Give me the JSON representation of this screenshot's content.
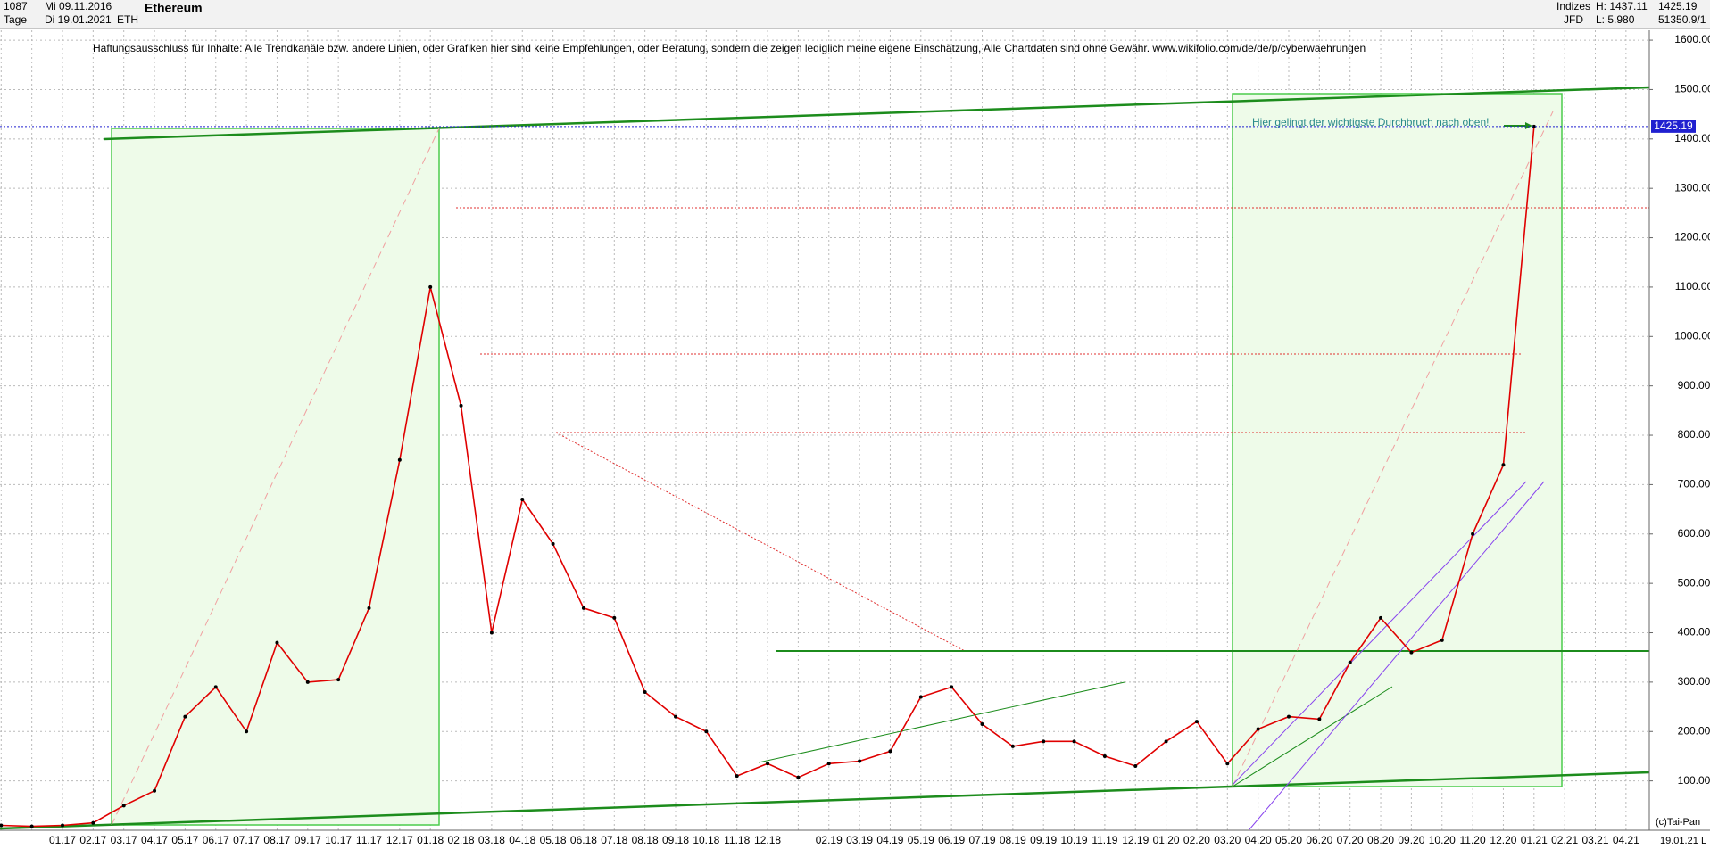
{
  "header": {
    "count": "1087",
    "from": "Mi 09.11.2016",
    "unit": "Tage",
    "to": "Di 19.01.2021",
    "symbol": "ETH",
    "name": "Ethereum",
    "group": "Indizes",
    "source": "JFD",
    "high": "H: 1437.11",
    "low": "L: 5.980",
    "last": "1425.19",
    "volume": "51350.9/1"
  },
  "chart_data": {
    "type": "line",
    "disclaimer": "Haftungsausschluss für Inhalte: Alle Trendkanäle bzw. andere Linien, oder Grafiken hier sind keine Empfehlungen, oder Beratung, sondern die zeigen lediglich meine eigene Einschätzung, Alle Chartdaten sind ohne Gewähr.  www.wikifolio.com/de/de/p/cyberwaehrungen",
    "annotation": "Hier gelingt der wichtigste Durchbruch nach oben!",
    "categories": [
      null,
      null,
      "01.17",
      "02.17",
      "03.17",
      "04.17",
      "05.17",
      "06.17",
      "07.17",
      "08.17",
      "09.17",
      "10.17",
      "11.17",
      "12.17",
      "01.18",
      "02.18",
      "03.18",
      "04.18",
      "05.18",
      "06.18",
      "07.18",
      "08.18",
      "09.18",
      "10.18",
      "11.18",
      "12.18",
      null,
      "02.19",
      "03.19",
      "04.19",
      "05.19",
      "06.19",
      "07.19",
      "08.19",
      "09.19",
      "10.19",
      "11.19",
      "12.19",
      "01.20",
      "02.20",
      "03.20",
      "04.20",
      "05.20",
      "06.20",
      "07.20",
      "08.20",
      "09.20",
      "10.20",
      "11.20",
      "12.20",
      "01.21",
      "02.21",
      "03.21",
      "04.21"
    ],
    "series": [
      {
        "name": "ETH",
        "color": "#e00000",
        "values": [
          10,
          8,
          10,
          15,
          50,
          80,
          230,
          290,
          200,
          380,
          300,
          305,
          450,
          750,
          1100,
          860,
          400,
          670,
          580,
          450,
          430,
          280,
          230,
          200,
          110,
          135,
          107,
          135,
          140,
          160,
          270,
          290,
          215,
          170,
          180,
          180,
          150,
          130,
          180,
          220,
          135,
          205,
          230,
          225,
          340,
          430,
          360,
          385,
          600,
          740,
          1425.19,
          null,
          null,
          null
        ]
      }
    ],
    "price_line": {
      "value": 1425.19,
      "label": "1425.19"
    },
    "ylim": [
      0,
      1620
    ],
    "yticks": [
      {
        "value": 100,
        "label": "100.00"
      },
      {
        "value": 200,
        "label": "200.00"
      },
      {
        "value": 300,
        "label": "300.00"
      },
      {
        "value": 400,
        "label": "400.00"
      },
      {
        "value": 500,
        "label": "500.00"
      },
      {
        "value": 600,
        "label": "600.00"
      },
      {
        "value": 700,
        "label": "700.00"
      },
      {
        "value": 800,
        "label": "800.00"
      },
      {
        "value": 900,
        "label": "900.00"
      },
      {
        "value": 1000,
        "label": "1000.00"
      },
      {
        "value": 1100,
        "label": "1100.00"
      },
      {
        "value": 1200,
        "label": "1200.00"
      },
      {
        "value": 1300,
        "label": "1300.00"
      },
      {
        "value": 1400,
        "label": "1400.00"
      },
      {
        "value": 1500,
        "label": "1500.00"
      },
      {
        "value": 1600,
        "label": "1600.00"
      }
    ],
    "grid": true
  },
  "footer": {
    "copyright": "(c)Tai-Pan",
    "date": "19.01.21",
    "scale": "L"
  }
}
